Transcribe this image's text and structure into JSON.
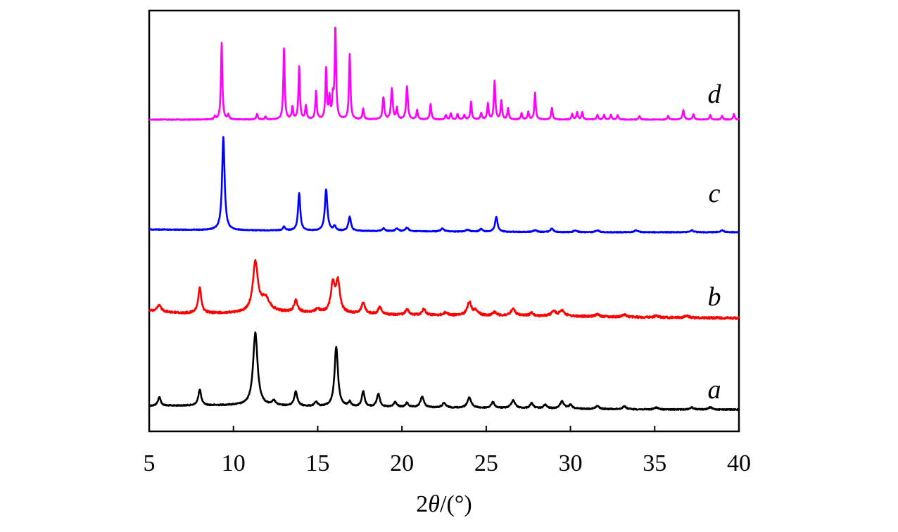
{
  "chart_data": {
    "type": "line",
    "xlabel": {
      "prefix": "2",
      "symbol": "θ",
      "suffix": "/(°)"
    },
    "xlim": [
      5,
      40
    ],
    "xticks": [
      5,
      10,
      15,
      20,
      25,
      30,
      35,
      40
    ],
    "xtick_labels": [
      "5",
      "10",
      "15",
      "20",
      "25",
      "30",
      "35",
      "40"
    ],
    "ylabel": "",
    "y_ticks_shown": false,
    "grid": false,
    "series": [
      {
        "name": "a",
        "color": "#000000",
        "baseline": [
          [
            5,
            0.05
          ],
          [
            10,
            0.06
          ],
          [
            15,
            0.04
          ],
          [
            20,
            0.03
          ],
          [
            25,
            0.02
          ],
          [
            30,
            0.01
          ],
          [
            35,
            0.0
          ],
          [
            40,
            0.0
          ]
        ],
        "peaks": [
          [
            5.6,
            0.12,
            0.1
          ],
          [
            8.0,
            0.22,
            0.1
          ],
          [
            11.3,
            1.0,
            0.16
          ],
          [
            12.4,
            0.06,
            0.12
          ],
          [
            13.7,
            0.2,
            0.11
          ],
          [
            14.9,
            0.06,
            0.1
          ],
          [
            16.1,
            0.83,
            0.12
          ],
          [
            16.9,
            0.06,
            0.1
          ],
          [
            17.7,
            0.21,
            0.1
          ],
          [
            18.6,
            0.18,
            0.11
          ],
          [
            19.6,
            0.07,
            0.11
          ],
          [
            20.3,
            0.06,
            0.1
          ],
          [
            21.2,
            0.15,
            0.12
          ],
          [
            22.5,
            0.06,
            0.13
          ],
          [
            24.0,
            0.14,
            0.14
          ],
          [
            25.4,
            0.08,
            0.12
          ],
          [
            26.6,
            0.11,
            0.14
          ],
          [
            27.7,
            0.07,
            0.12
          ],
          [
            28.5,
            0.05,
            0.12
          ],
          [
            29.5,
            0.1,
            0.14
          ],
          [
            30.0,
            0.05,
            0.12
          ],
          [
            31.6,
            0.04,
            0.13
          ],
          [
            33.2,
            0.04,
            0.13
          ],
          [
            35.1,
            0.03,
            0.13
          ],
          [
            37.2,
            0.03,
            0.13
          ],
          [
            38.3,
            0.03,
            0.13
          ]
        ]
      },
      {
        "name": "b",
        "color": "#ff0000",
        "baseline": [
          [
            5,
            0.12
          ],
          [
            7,
            0.08
          ],
          [
            10,
            0.08
          ],
          [
            12,
            0.1
          ],
          [
            15,
            0.09
          ],
          [
            20,
            0.05
          ],
          [
            25,
            0.04
          ],
          [
            30,
            0.03
          ],
          [
            35,
            0.01
          ],
          [
            40,
            0.0
          ]
        ],
        "peaks": [
          [
            5.6,
            0.1,
            0.15
          ],
          [
            8.0,
            0.42,
            0.11
          ],
          [
            11.3,
            0.82,
            0.18
          ],
          [
            11.9,
            0.22,
            0.3
          ],
          [
            13.7,
            0.2,
            0.12
          ],
          [
            15.0,
            0.06,
            0.12
          ],
          [
            15.9,
            0.48,
            0.14
          ],
          [
            16.2,
            0.5,
            0.14
          ],
          [
            17.7,
            0.18,
            0.13
          ],
          [
            18.7,
            0.12,
            0.13
          ],
          [
            20.3,
            0.1,
            0.12
          ],
          [
            21.3,
            0.1,
            0.13
          ],
          [
            22.6,
            0.05,
            0.13
          ],
          [
            24.0,
            0.22,
            0.15
          ],
          [
            24.4,
            0.08,
            0.15
          ],
          [
            25.5,
            0.06,
            0.13
          ],
          [
            26.6,
            0.11,
            0.16
          ],
          [
            27.7,
            0.05,
            0.13
          ],
          [
            29.0,
            0.08,
            0.16
          ],
          [
            29.5,
            0.1,
            0.16
          ],
          [
            31.6,
            0.04,
            0.14
          ],
          [
            33.2,
            0.04,
            0.14
          ],
          [
            35.1,
            0.03,
            0.14
          ],
          [
            36.9,
            0.03,
            0.14
          ]
        ]
      },
      {
        "name": "c",
        "color": "#0000ff",
        "baseline": [
          [
            5,
            0.03
          ],
          [
            10,
            0.02
          ],
          [
            20,
            0.01
          ],
          [
            30,
            0.0
          ],
          [
            40,
            0.0
          ]
        ],
        "peaks": [
          [
            9.4,
            1.0,
            0.09
          ],
          [
            13.0,
            0.04,
            0.09
          ],
          [
            13.9,
            0.4,
            0.08
          ],
          [
            15.5,
            0.44,
            0.09
          ],
          [
            16.0,
            0.05,
            0.08
          ],
          [
            16.9,
            0.15,
            0.09
          ],
          [
            18.9,
            0.03,
            0.1
          ],
          [
            19.7,
            0.03,
            0.1
          ],
          [
            20.3,
            0.04,
            0.1
          ],
          [
            22.4,
            0.03,
            0.12
          ],
          [
            23.9,
            0.02,
            0.12
          ],
          [
            24.7,
            0.03,
            0.1
          ],
          [
            25.6,
            0.16,
            0.09
          ],
          [
            27.9,
            0.02,
            0.12
          ],
          [
            28.9,
            0.04,
            0.1
          ],
          [
            30.3,
            0.02,
            0.12
          ],
          [
            31.6,
            0.02,
            0.12
          ],
          [
            33.9,
            0.02,
            0.12
          ],
          [
            37.2,
            0.02,
            0.12
          ],
          [
            39.0,
            0.02,
            0.12
          ]
        ]
      },
      {
        "name": "d",
        "color": "#ff00ff",
        "baseline": [
          [
            5,
            0.0
          ],
          [
            40,
            0.0
          ]
        ],
        "peaks": [
          [
            8.9,
            0.03,
            0.05
          ],
          [
            9.3,
            0.83,
            0.05
          ],
          [
            9.7,
            0.05,
            0.05
          ],
          [
            11.4,
            0.06,
            0.05
          ],
          [
            11.9,
            0.03,
            0.05
          ],
          [
            13.0,
            0.77,
            0.05
          ],
          [
            13.5,
            0.13,
            0.05
          ],
          [
            13.9,
            0.57,
            0.05
          ],
          [
            14.3,
            0.15,
            0.05
          ],
          [
            14.9,
            0.3,
            0.05
          ],
          [
            15.5,
            0.54,
            0.05
          ],
          [
            15.7,
            0.22,
            0.05
          ],
          [
            15.9,
            0.22,
            0.05
          ],
          [
            16.05,
            1.0,
            0.05
          ],
          [
            16.9,
            0.71,
            0.05
          ],
          [
            17.7,
            0.12,
            0.05
          ],
          [
            18.9,
            0.24,
            0.06
          ],
          [
            19.4,
            0.33,
            0.06
          ],
          [
            19.7,
            0.12,
            0.05
          ],
          [
            20.3,
            0.36,
            0.06
          ],
          [
            20.9,
            0.1,
            0.05
          ],
          [
            21.7,
            0.17,
            0.05
          ],
          [
            22.6,
            0.05,
            0.05
          ],
          [
            22.9,
            0.07,
            0.05
          ],
          [
            23.3,
            0.06,
            0.05
          ],
          [
            23.7,
            0.05,
            0.05
          ],
          [
            24.1,
            0.19,
            0.05
          ],
          [
            24.7,
            0.07,
            0.05
          ],
          [
            25.1,
            0.17,
            0.05
          ],
          [
            25.5,
            0.42,
            0.05
          ],
          [
            25.9,
            0.2,
            0.05
          ],
          [
            26.3,
            0.12,
            0.05
          ],
          [
            27.1,
            0.07,
            0.05
          ],
          [
            27.5,
            0.08,
            0.05
          ],
          [
            27.9,
            0.29,
            0.05
          ],
          [
            28.9,
            0.13,
            0.05
          ],
          [
            30.1,
            0.06,
            0.05
          ],
          [
            30.4,
            0.08,
            0.05
          ],
          [
            30.7,
            0.08,
            0.05
          ],
          [
            31.6,
            0.05,
            0.05
          ],
          [
            32.0,
            0.05,
            0.05
          ],
          [
            32.4,
            0.05,
            0.05
          ],
          [
            32.8,
            0.05,
            0.05
          ],
          [
            34.1,
            0.04,
            0.05
          ],
          [
            35.8,
            0.04,
            0.05
          ],
          [
            36.7,
            0.1,
            0.06
          ],
          [
            37.3,
            0.06,
            0.05
          ],
          [
            38.3,
            0.05,
            0.05
          ],
          [
            39.0,
            0.04,
            0.05
          ],
          [
            39.7,
            0.06,
            0.05
          ]
        ]
      }
    ]
  }
}
